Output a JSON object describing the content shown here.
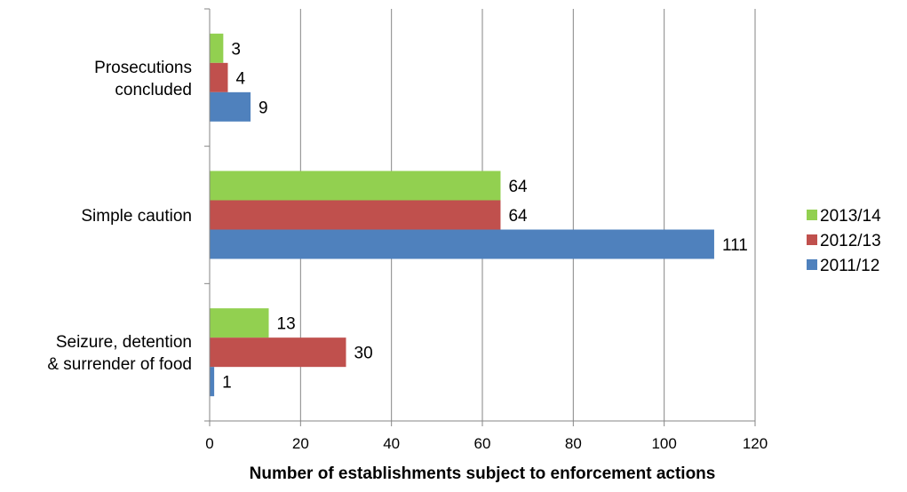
{
  "chart_data": {
    "type": "bar",
    "orientation": "horizontal",
    "categories": [
      "Prosecutions concluded",
      "Simple caution",
      "Seizure, detention & surrender of food"
    ],
    "category_label_lines": [
      [
        "Prosecutions",
        "concluded"
      ],
      [
        "Simple caution"
      ],
      [
        "Seizure, detention",
        "& surrender of food"
      ]
    ],
    "series": [
      {
        "name": "2013/14",
        "color": "#92D050",
        "values": [
          3,
          64,
          13
        ]
      },
      {
        "name": "2012/13",
        "color": "#C0504D",
        "values": [
          4,
          64,
          30
        ]
      },
      {
        "name": "2011/12",
        "color": "#4F81BD",
        "values": [
          9,
          111,
          1
        ]
      }
    ],
    "xlabel": "Number of establishments subject to enforcement actions",
    "ylabel": "",
    "xlim": [
      0,
      120
    ],
    "xticks": [
      "0",
      "20",
      "40",
      "60",
      "80",
      "100",
      "120"
    ],
    "grid": "vertical",
    "legend_position": "right"
  }
}
